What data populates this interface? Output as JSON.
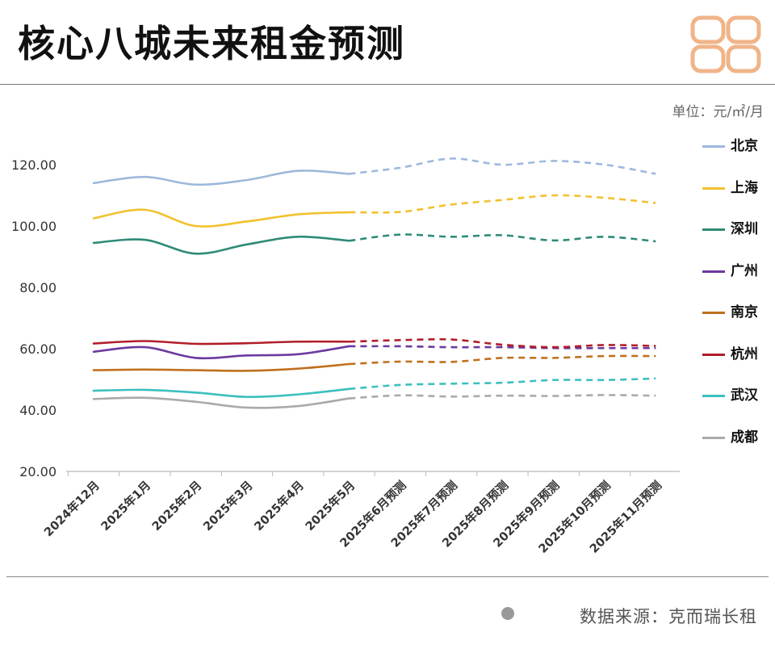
{
  "title": "核心八城未来租金预测",
  "unit_label": "单位：元/㎡/月",
  "source": "数据来源：克而瑞长租",
  "brand_color": "#F0B489",
  "chart_data": {
    "type": "line",
    "categories": [
      "2024年12月",
      "2025年1月",
      "2025年2月",
      "2025年3月",
      "2025年4月",
      "2025年5月",
      "2025年6月预测",
      "2025年7月预测",
      "2025年8月预测",
      "2025年9月预测",
      "2025年10月预测",
      "2025年11月预测"
    ],
    "forecast_start_index": 5,
    "y_ticks": [
      "20.00",
      "40.00",
      "60.00",
      "80.00",
      "100.00",
      "120.00"
    ],
    "ylim": [
      20,
      127
    ],
    "line_style": "solid for actual months, dashed for forecast months",
    "legend_position": "right",
    "series": [
      {
        "name": "北京",
        "color": "#9DB9DC",
        "values": [
          114,
          116,
          113.5,
          115,
          118,
          117,
          119,
          122,
          120,
          121.2,
          120,
          117
        ]
      },
      {
        "name": "上海",
        "color": "#F2C12E",
        "values": [
          102.5,
          105.3,
          100,
          101.5,
          103.8,
          104.5,
          104.6,
          107,
          108.5,
          110,
          109.2,
          107.5
        ]
      },
      {
        "name": "深圳",
        "color": "#2E8B78",
        "values": [
          94.5,
          95.5,
          91,
          94,
          96.5,
          95.2,
          97.2,
          96.5,
          97,
          95.3,
          96.5,
          95
        ]
      },
      {
        "name": "广州",
        "color": "#6C3AA0",
        "values": [
          59,
          60.5,
          57,
          57.8,
          58.2,
          60.8,
          60.8,
          60.5,
          60.5,
          60.2,
          60.2,
          60.2
        ]
      },
      {
        "name": "南京",
        "color": "#C0701E",
        "values": [
          53,
          53.2,
          53,
          52.8,
          53.5,
          55,
          55.8,
          55.7,
          57,
          57,
          57.6,
          57.6
        ]
      },
      {
        "name": "杭州",
        "color": "#B01E2A",
        "values": [
          61.7,
          62.5,
          61.6,
          61.8,
          62.3,
          62.3,
          62.8,
          63,
          61.3,
          60.5,
          61.2,
          60.9
        ]
      },
      {
        "name": "武汉",
        "color": "#3DBFBF",
        "values": [
          46.3,
          46.6,
          45.7,
          44.3,
          45.1,
          46.9,
          48.2,
          48.6,
          48.9,
          49.8,
          49.8,
          50.3
        ]
      },
      {
        "name": "成都",
        "color": "#AAAAAA",
        "values": [
          43.6,
          44,
          42.7,
          40.8,
          41.3,
          43.8,
          44.8,
          44.4,
          44.7,
          44.6,
          44.9,
          44.7
        ]
      }
    ]
  }
}
